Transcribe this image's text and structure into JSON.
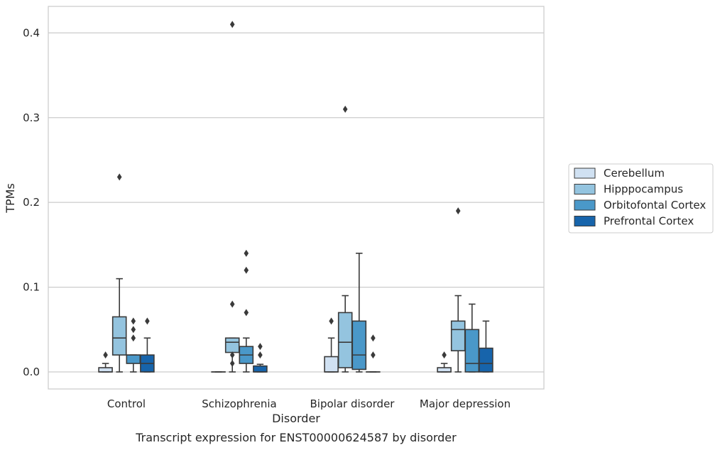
{
  "chart_data": {
    "type": "box",
    "title": "",
    "caption": "Transcript expression for ENST00000624587 by disorder",
    "xlabel": "Disorder",
    "ylabel": "TPMs",
    "ylim": [
      -0.02,
      0.43
    ],
    "yticks": [
      0.0,
      0.1,
      0.2,
      0.3,
      0.4
    ],
    "ytick_labels": [
      "0.0",
      "0.1",
      "0.2",
      "0.3",
      "0.4"
    ],
    "grid": "horizontal",
    "legend_position": "right",
    "categories": [
      "Control",
      "Schizophrenia",
      "Bipolar disorder",
      "Major depression"
    ],
    "series": [
      {
        "name": "Cerebellum",
        "color": "#d0e1f2",
        "boxes": [
          {
            "q1": 0.0,
            "median": 0.0,
            "q3": 0.005,
            "whislo": 0.0,
            "whishi": 0.01,
            "fliers": [
              0.02
            ]
          },
          {
            "q1": 0.0,
            "median": 0.0,
            "q3": 0.0,
            "whislo": 0.0,
            "whishi": 0.0,
            "fliers": []
          },
          {
            "q1": 0.0,
            "median": 0.0,
            "q3": 0.018,
            "whislo": 0.0,
            "whishi": 0.04,
            "fliers": [
              0.06
            ]
          },
          {
            "q1": 0.0,
            "median": 0.0,
            "q3": 0.005,
            "whislo": 0.0,
            "whishi": 0.01,
            "fliers": [
              0.02
            ]
          }
        ]
      },
      {
        "name": "Hipppocampus",
        "color": "#94c4df",
        "boxes": [
          {
            "q1": 0.02,
            "median": 0.04,
            "q3": 0.065,
            "whislo": 0.0,
            "whishi": 0.11,
            "fliers": [
              0.23
            ]
          },
          {
            "q1": 0.023,
            "median": 0.035,
            "q3": 0.04,
            "whislo": 0.0,
            "whishi": 0.04,
            "fliers": [
              0.08,
              0.02,
              0.01,
              0.41
            ]
          },
          {
            "q1": 0.005,
            "median": 0.035,
            "q3": 0.07,
            "whislo": 0.0,
            "whishi": 0.09,
            "fliers": [
              0.31
            ]
          },
          {
            "q1": 0.025,
            "median": 0.05,
            "q3": 0.06,
            "whislo": 0.0,
            "whishi": 0.09,
            "fliers": [
              0.19
            ]
          }
        ]
      },
      {
        "name": "Orbitofontal Cortex",
        "color": "#4a98c9",
        "boxes": [
          {
            "q1": 0.01,
            "median": 0.02,
            "q3": 0.02,
            "whislo": 0.0,
            "whishi": 0.02,
            "fliers": [
              0.04,
              0.05,
              0.06
            ]
          },
          {
            "q1": 0.01,
            "median": 0.02,
            "q3": 0.03,
            "whislo": 0.0,
            "whishi": 0.04,
            "fliers": [
              0.07,
              0.12,
              0.14
            ]
          },
          {
            "q1": 0.003,
            "median": 0.02,
            "q3": 0.06,
            "whislo": 0.0,
            "whishi": 0.14,
            "fliers": []
          },
          {
            "q1": 0.0,
            "median": 0.01,
            "q3": 0.05,
            "whislo": 0.0,
            "whishi": 0.08,
            "fliers": []
          }
        ]
      },
      {
        "name": "Prefrontal Cortex",
        "color": "#1764ab",
        "boxes": [
          {
            "q1": 0.0,
            "median": 0.01,
            "q3": 0.02,
            "whislo": 0.0,
            "whishi": 0.04,
            "fliers": [
              0.06
            ]
          },
          {
            "q1": 0.0,
            "median": 0.0,
            "q3": 0.007,
            "whislo": 0.0,
            "whishi": 0.009,
            "fliers": [
              0.02,
              0.03
            ]
          },
          {
            "q1": 0.0,
            "median": 0.0,
            "q3": 0.0,
            "whislo": 0.0,
            "whishi": 0.0,
            "fliers": [
              0.02,
              0.04
            ]
          },
          {
            "q1": 0.0,
            "median": 0.01,
            "q3": 0.028,
            "whislo": 0.0,
            "whishi": 0.06,
            "fliers": []
          }
        ]
      }
    ]
  }
}
